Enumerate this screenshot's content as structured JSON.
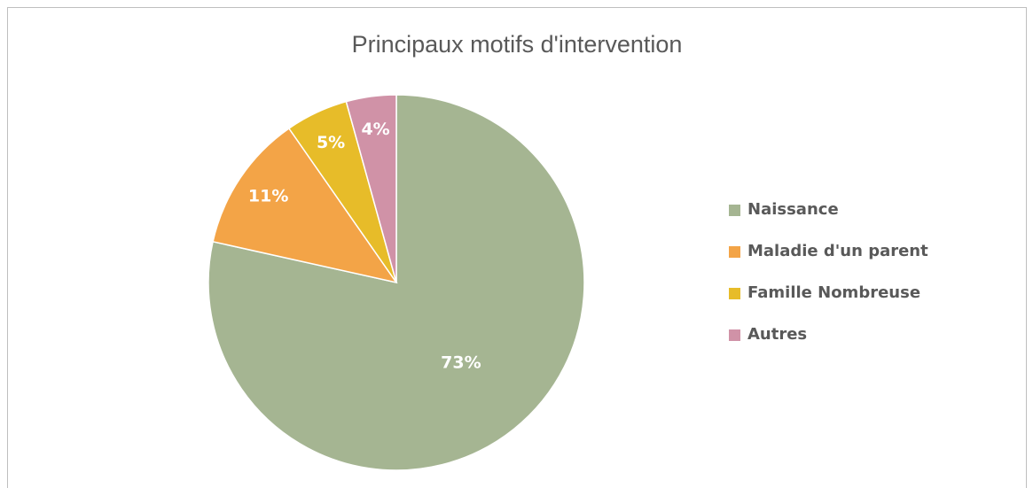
{
  "chart_data": {
    "type": "pie",
    "title": "Principaux motifs d'intervention",
    "categories": [
      "Naissance",
      "Maladie d'un parent",
      "Famille Nombreuse",
      "Autres"
    ],
    "values": [
      73,
      11,
      5,
      4
    ],
    "value_labels": [
      "73%",
      "11%",
      "5%",
      "4%"
    ],
    "colors": [
      "#a5b592",
      "#f3a447",
      "#e7bc29",
      "#d092a7"
    ],
    "legend": "right"
  }
}
